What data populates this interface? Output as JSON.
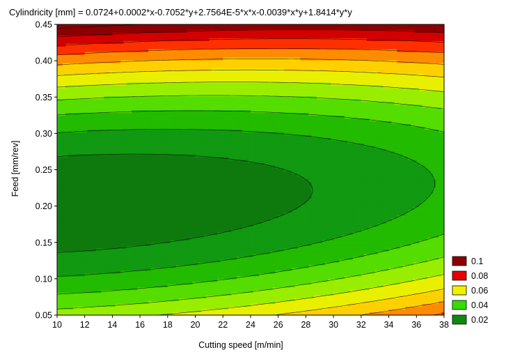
{
  "chart_data": {
    "type": "contour",
    "title": "Cylindricity [mm] = 0.0724+0.0002*x-0.7052*y+2.7564E-5*x*x-0.0039*x*y+1.8414*y*y",
    "xlabel": "Cutting speed [m/min]",
    "ylabel": "Feed [mm/rev]",
    "xlim": [
      10,
      38
    ],
    "ylim": [
      0.05,
      0.45
    ],
    "x_ticks": [
      "10",
      "12",
      "14",
      "16",
      "18",
      "20",
      "22",
      "24",
      "26",
      "28",
      "30",
      "32",
      "34",
      "36",
      "38"
    ],
    "y_ticks": [
      "0.05",
      "0.10",
      "0.15",
      "0.20",
      "0.25",
      "0.30",
      "0.35",
      "0.40",
      "0.45"
    ],
    "coefficients": {
      "c0": 0.0724,
      "cx": 0.0002,
      "cy": -0.7052,
      "cxx": 2.7564e-05,
      "cxy": -0.0039,
      "cyy": 1.8414
    },
    "contour_step": 0.01,
    "band_colors": [
      "#0e7a0e",
      "#119911",
      "#22bb00",
      "#55dd00",
      "#99ee00",
      "#e8f000",
      "#ffd000",
      "#ff8c00",
      "#ff3000",
      "#d20000",
      "#8b0000"
    ],
    "legend": [
      {
        "label": "0.1",
        "color": "#8b0000"
      },
      {
        "label": "0.08",
        "color": "#e60000"
      },
      {
        "label": "0.06",
        "color": "#f0f000"
      },
      {
        "label": "0.04",
        "color": "#33dd00"
      },
      {
        "label": "0.02",
        "color": "#0e8a0e"
      }
    ]
  }
}
